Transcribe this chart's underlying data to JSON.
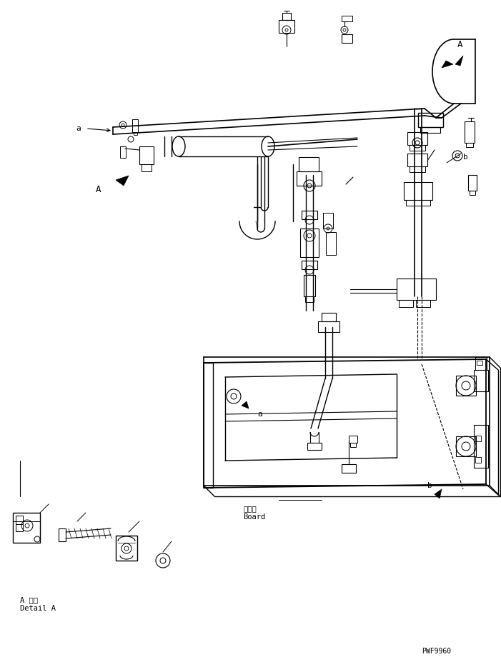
{
  "bg_color": "#ffffff",
  "line_color": "#000000",
  "figsize": [
    7.01,
    9.27
  ],
  "dpi": 100,
  "label_a_detail_jp": "A 詳細",
  "label_a_detail_en": "Detail A",
  "label_board_jp": "ボード",
  "label_board_en": "Board",
  "label_pwf": "PWF9960",
  "label_a_top": "A",
  "label_a_arrow": "A",
  "label_a_left": "a",
  "label_b_right": "b",
  "label_a_board": "a",
  "label_b_board": "b"
}
